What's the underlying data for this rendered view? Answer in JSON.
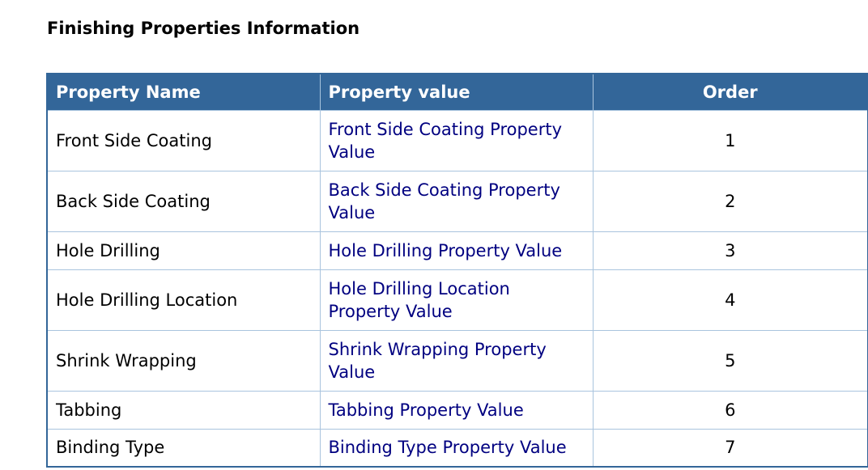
{
  "page": {
    "title": "Finishing Properties Information"
  },
  "table": {
    "headers": {
      "name": "Property Name",
      "value": "Property value",
      "order": "Order"
    },
    "rows": [
      {
        "name": "Front Side Coating",
        "value": "Front Side Coating Property Value",
        "order": "1"
      },
      {
        "name": "Back Side Coating",
        "value": "Back Side Coating Property Value",
        "order": "2"
      },
      {
        "name": "Hole Drilling",
        "value": "Hole Drilling Property Value",
        "order": "3"
      },
      {
        "name": "Hole Drilling Location",
        "value": "Hole Drilling Location Property Value",
        "order": "4"
      },
      {
        "name": "Shrink Wrapping",
        "value": "Shrink Wrapping Property Value",
        "order": "5"
      },
      {
        "name": "Tabbing",
        "value": "Tabbing Property Value",
        "order": "6"
      },
      {
        "name": "Binding Type",
        "value": "Binding Type Property Value",
        "order": "7"
      }
    ]
  },
  "colors": {
    "header_background": "#336699",
    "header_text": "#ffffff",
    "value_text": "#000080",
    "grid_line": "#a9c4de"
  }
}
